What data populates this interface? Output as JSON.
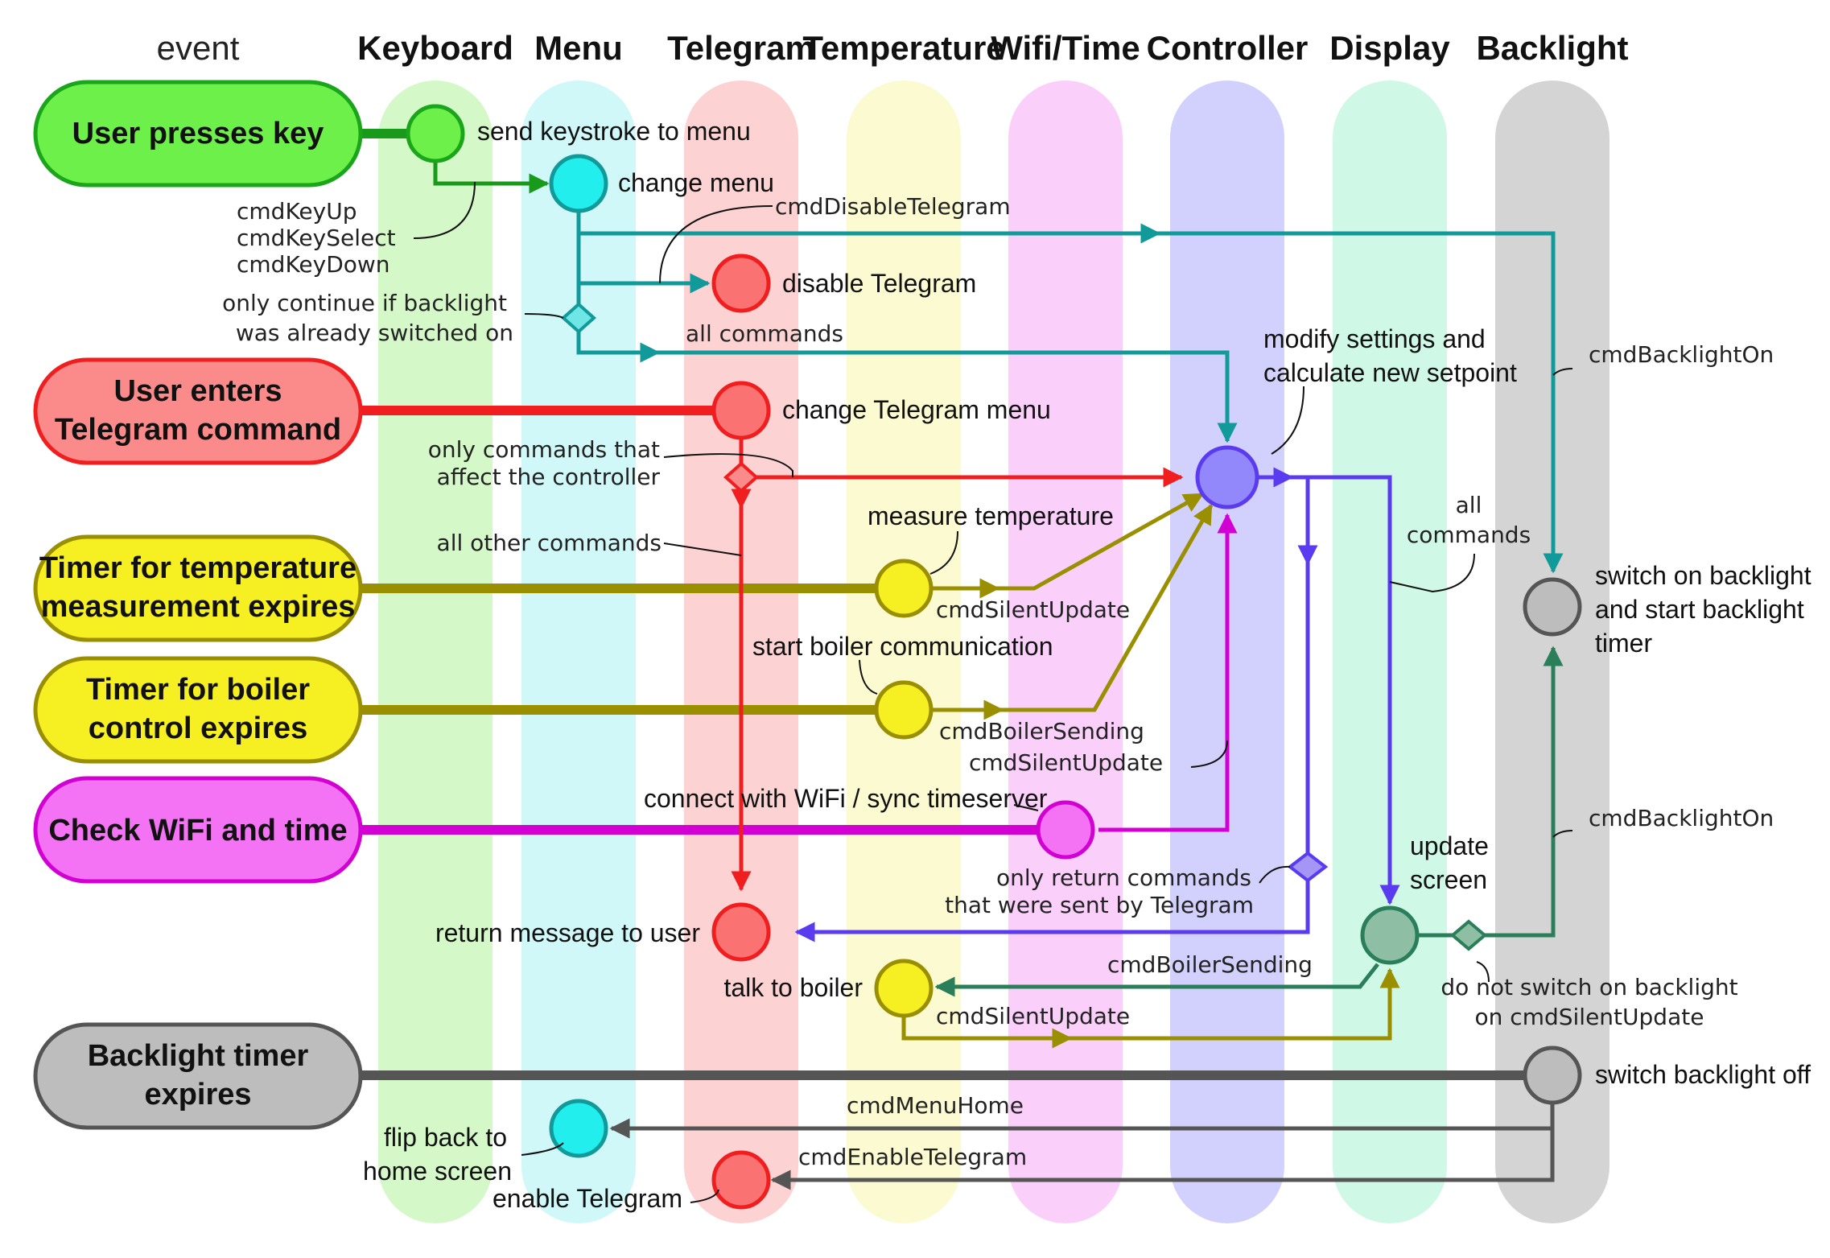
{
  "colors": {
    "keyboard": "#3fd23f",
    "menu": "#19dbe0",
    "telegram": "#f03b3b",
    "temperature": "#a39a00",
    "wifi": "#d200d2",
    "controller": "#5a3bef",
    "display": "#2a7f5a",
    "backlight": "#555555",
    "teal": "#129a9a"
  },
  "columns": [
    {
      "id": "event",
      "label": "event"
    },
    {
      "id": "keyboard",
      "label": "Keyboard"
    },
    {
      "id": "menu",
      "label": "Menu"
    },
    {
      "id": "telegram",
      "label": "Telegram"
    },
    {
      "id": "temperature",
      "label": "Temperature"
    },
    {
      "id": "wifi",
      "label": "Wifi/Time"
    },
    {
      "id": "controller",
      "label": "Controller"
    },
    {
      "id": "display",
      "label": "Display"
    },
    {
      "id": "backlight",
      "label": "Backlight"
    }
  ],
  "events": {
    "key": {
      "line1": "User presses key",
      "line2": ""
    },
    "telegram": {
      "line1": "User enters",
      "line2": "Telegram command"
    },
    "temp": {
      "line1": "Timer for temperature",
      "line2": "measurement expires"
    },
    "boiler": {
      "line1": "Timer for boiler",
      "line2": "control expires"
    },
    "wifi": {
      "line1": "Check WiFi and time",
      "line2": ""
    },
    "backlight": {
      "line1": "Backlight timer",
      "line2": "expires"
    }
  },
  "actions": {
    "send_keystroke": "send keystroke to menu",
    "change_menu": "change menu",
    "disable_telegram": "disable Telegram",
    "modify_settings_1": "modify settings and",
    "modify_settings_2": "calculate new setpoint",
    "change_telegram_menu": "change Telegram menu",
    "measure_temperature": "measure temperature",
    "switch_on_backlight_1": "switch on backlight",
    "switch_on_backlight_2": "and start backlight",
    "switch_on_backlight_3": "timer",
    "start_boiler": "start boiler communication",
    "connect_wifi": "connect with WiFi / sync timeserver",
    "update_screen_1": "update",
    "update_screen_2": "screen",
    "return_message": "return message to user",
    "talk_to_boiler": "talk to boiler",
    "switch_backlight_off": "switch backlight off",
    "flip_back_1": "flip back to",
    "flip_back_2": "home screen",
    "enable_telegram": "enable Telegram"
  },
  "commands": {
    "cmd_key_up": "cmdKeyUp",
    "cmd_key_select": "cmdKeySelect",
    "cmd_key_down": "cmdKeyDown",
    "cmd_disable_telegram": "cmdDisableTelegram",
    "only_continue_1": "only continue if backlight",
    "only_continue_2": "was already switched on",
    "all_commands_1": "all commands",
    "cmd_backlight_on_1": "cmdBacklightOn",
    "only_affect_1": "only commands that",
    "only_affect_2": "affect the controller",
    "all_commands_2a": "all",
    "all_commands_2b": "commands",
    "all_other": "all other commands",
    "cmd_silent_update_1": "cmdSilentUpdate",
    "cmd_boiler_sending_1": "cmdBoilerSending",
    "cmd_silent_update_2": "cmdSilentUpdate",
    "cmd_backlight_on_2": "cmdBacklightOn",
    "only_return_1": "only return commands",
    "only_return_2": "that were sent by Telegram",
    "cmd_boiler_sending_2": "cmdBoilerSending",
    "do_not_switch_1": "do not switch on backlight",
    "do_not_switch_2": "on cmdSilentUpdate",
    "cmd_silent_update_3": "cmdSilentUpdate",
    "cmd_menu_home": "cmdMenuHome",
    "cmd_enable_telegram": "cmdEnableTelegram"
  }
}
